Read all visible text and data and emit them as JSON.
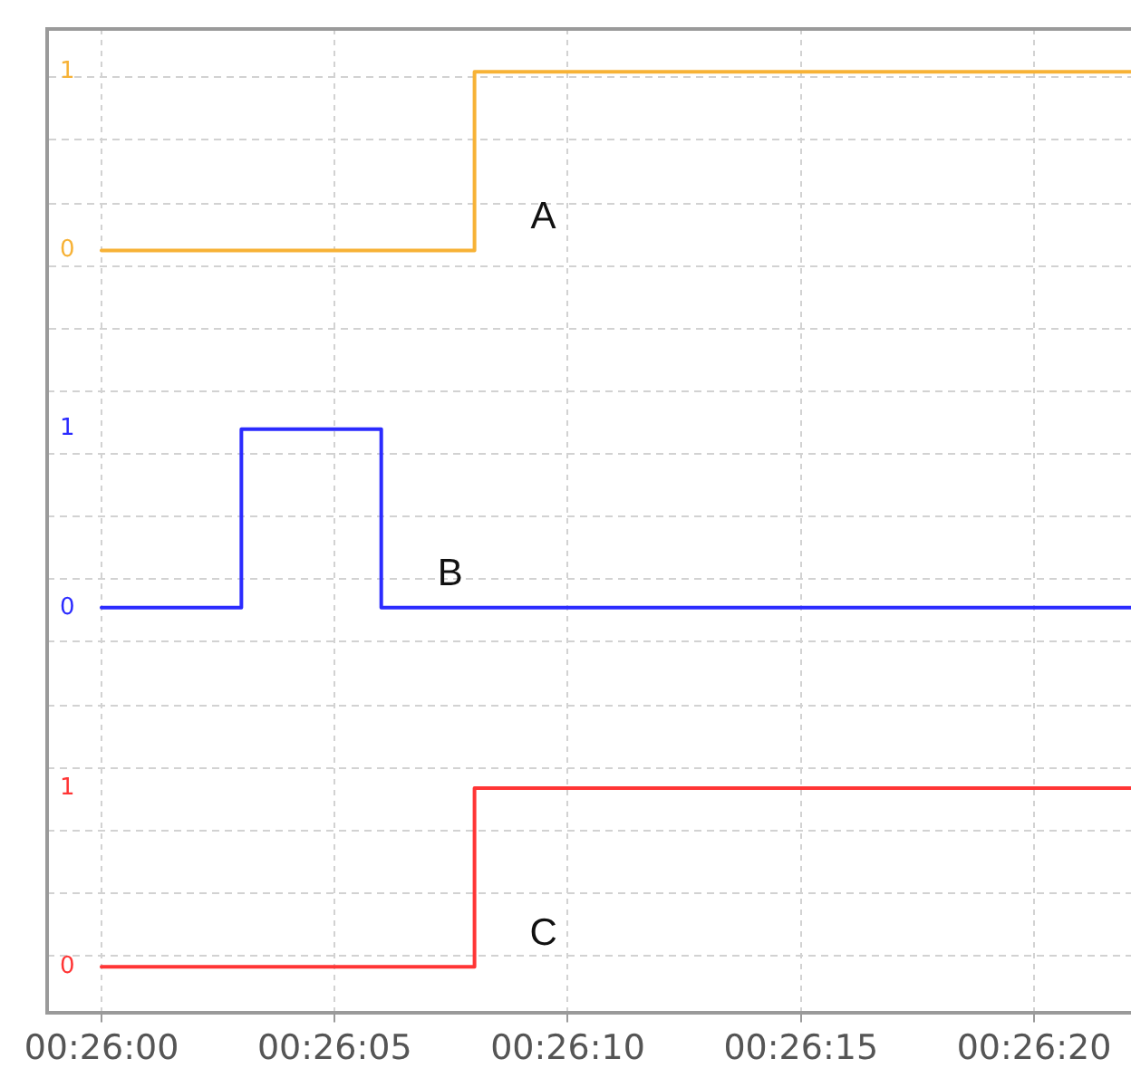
{
  "chart_data": {
    "type": "step",
    "series": [
      {
        "name": "A",
        "color": "#f7b236",
        "axis": "y",
        "x": [
          0.4333333,
          0.4355556,
          0.4394667
        ],
        "values": [
          0,
          1,
          1
        ]
      },
      {
        "name": "B",
        "color": "#2b2bff",
        "axis": "y2",
        "x": [
          0.4333333,
          0.4341667,
          0.435,
          0.4394667
        ],
        "values": [
          0,
          1,
          0,
          0
        ]
      },
      {
        "name": "C",
        "color": "#ff3535",
        "axis": "y3",
        "x": [
          0.4333333,
          0.4355556,
          0.4394667
        ],
        "values": [
          0,
          1,
          1
        ]
      }
    ],
    "xlim": [
      0.4330094,
      0.4394667
    ],
    "xticks": [
      {
        "value": 0.4333333,
        "label": "00:26:00"
      },
      {
        "value": 0.4347222,
        "label": "00:26:05"
      },
      {
        "value": 0.4361111,
        "label": "00:26:10"
      },
      {
        "value": 0.4375,
        "label": "00:26:15"
      },
      {
        "value": 0.4388889,
        "label": "00:26:20"
      }
    ],
    "ylim": [
      -4.27,
      1.24
    ],
    "yticks": [
      {
        "value": -0.44,
        "label": null
      },
      {
        "value": -0.09,
        "label": null
      },
      0,
      {
        "value": 0.26,
        "label": null
      },
      {
        "value": 0.62,
        "label": null
      },
      {
        "value": 0.97,
        "label": null
      },
      1
    ],
    "y2lim": [
      -2.27,
      3.24
    ],
    "y2ticks": [
      {
        "value": -0.19,
        "label": null
      },
      0,
      {
        "value": 0.16,
        "label": null
      },
      {
        "value": 0.51,
        "label": null
      },
      {
        "value": 0.86,
        "label": null
      },
      1,
      {
        "value": 1.21,
        "label": null
      }
    ],
    "y3lim": [
      -0.26,
      5.25
    ],
    "y3ticks": [
      0,
      {
        "value": 0.06,
        "label": null
      },
      {
        "value": 0.41,
        "label": null
      },
      {
        "value": 0.76,
        "label": null
      },
      1,
      {
        "value": 1.11,
        "label": null
      },
      {
        "value": 1.46,
        "label": null
      }
    ],
    "grid": true
  }
}
